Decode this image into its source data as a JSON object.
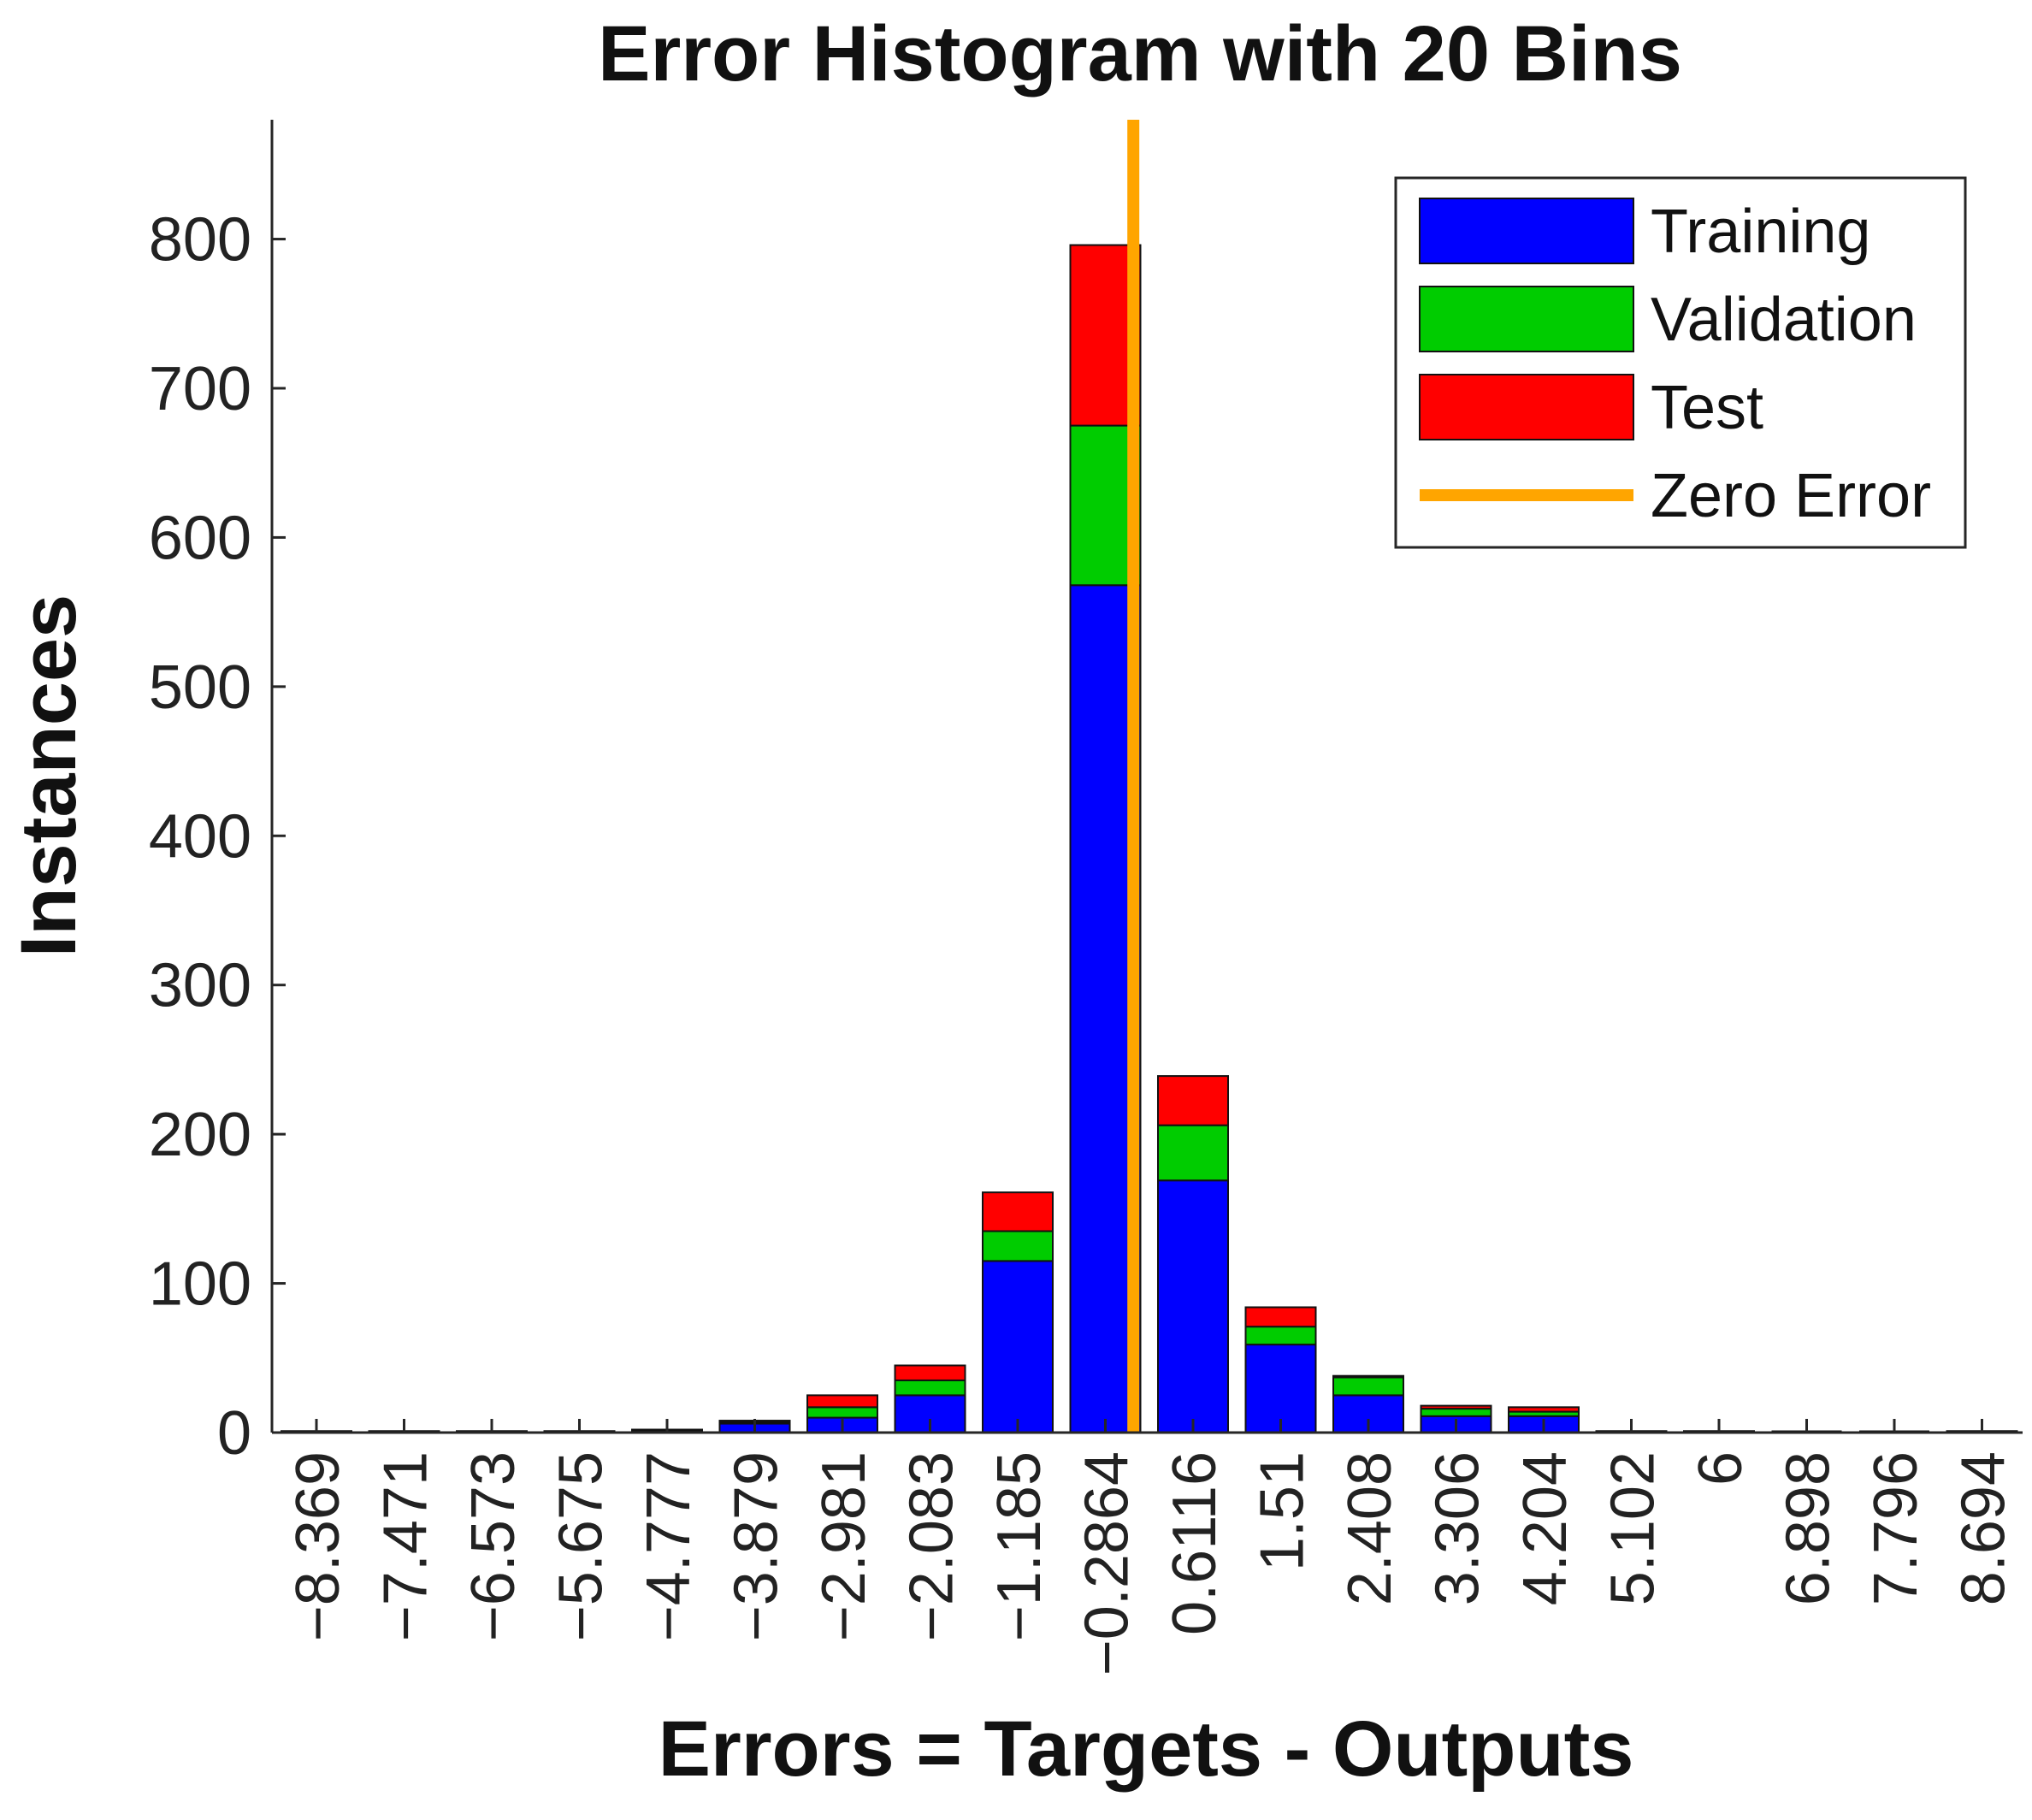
{
  "chart_data": {
    "type": "bar",
    "title": "Error Histogram with 20 Bins",
    "xlabel": "Errors = Targets - Outputs",
    "ylabel": "Instances",
    "ylim": [
      0,
      880
    ],
    "yticks": [
      0,
      100,
      200,
      300,
      400,
      500,
      600,
      700,
      800
    ],
    "categories": [
      "−8.369",
      "−7.471",
      "−6.573",
      "−5.675",
      "−4.777",
      "−3.879",
      "−2.981",
      "−2.083",
      "−1.185",
      "−0.2864",
      "0.6116",
      "1.51",
      "2.408",
      "3.306",
      "4.204",
      "5.102",
      "6",
      "6.898",
      "7.796",
      "8.694"
    ],
    "stacked": true,
    "series": [
      {
        "name": "Training",
        "color": "#0000ff",
        "values": [
          1,
          1,
          1,
          1,
          1,
          6,
          10,
          25,
          115,
          568,
          169,
          59,
          25,
          11,
          11,
          0,
          1,
          0,
          0,
          1
        ]
      },
      {
        "name": "Validation",
        "color": "#00cc00",
        "values": [
          0,
          0,
          0,
          0,
          0,
          1,
          7,
          10,
          20,
          107,
          37,
          12,
          12,
          5,
          3,
          0,
          0,
          0,
          0,
          0
        ]
      },
      {
        "name": "Test",
        "color": "#ff0000",
        "values": [
          0,
          0,
          0,
          0,
          1,
          1,
          8,
          10,
          26,
          121,
          33,
          13,
          1,
          2,
          3,
          1,
          0,
          0,
          0,
          0
        ]
      }
    ],
    "zero_error": {
      "name": "Zero Error",
      "color": "#ffa500",
      "x": 0
    },
    "legend": {
      "position": "top-right",
      "entries": [
        "Training",
        "Validation",
        "Test",
        "Zero Error"
      ]
    },
    "grid": false
  }
}
